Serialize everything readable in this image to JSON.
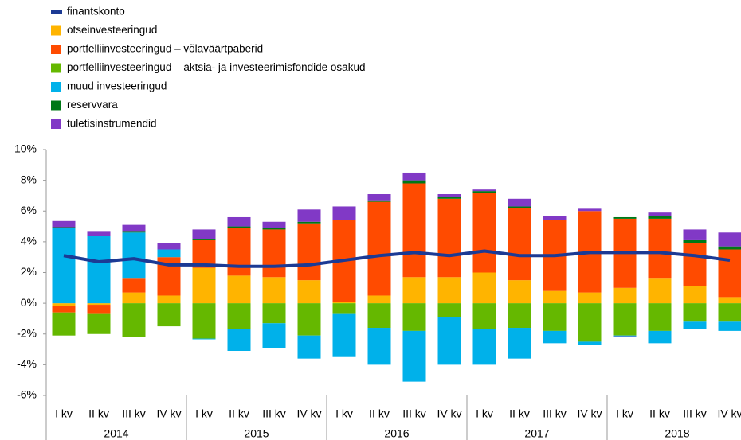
{
  "chart_data": {
    "type": "stacked-bar-line",
    "categories": [
      "I kv",
      "II kv",
      "III kv",
      "IV kv",
      "I kv",
      "II kv",
      "III kv",
      "IV kv",
      "I kv",
      "II kv",
      "III kv",
      "IV kv",
      "I kv",
      "II kv",
      "III kv",
      "IV kv",
      "I kv",
      "II kv",
      "III kv",
      "IV kv"
    ],
    "years": [
      "2014",
      "2015",
      "2016",
      "2017",
      "2018"
    ],
    "ylim": [
      -6,
      10
    ],
    "yticks": [
      {
        "value": -6,
        "label": "-6%"
      },
      {
        "value": -4,
        "label": "-4%"
      },
      {
        "value": -2,
        "label": "-2%"
      },
      {
        "value": 0,
        "label": "0%"
      },
      {
        "value": 2,
        "label": "2%"
      },
      {
        "value": 4,
        "label": "4%"
      },
      {
        "value": 6,
        "label": "6%"
      },
      {
        "value": 8,
        "label": "8%"
      },
      {
        "value": 10,
        "label": "10%"
      }
    ],
    "grid": false,
    "line": {
      "name": "finantskonto",
      "color": "#1c3a94",
      "values": [
        3.1,
        2.7,
        2.9,
        2.5,
        2.5,
        2.4,
        2.4,
        2.5,
        2.8,
        3.1,
        3.3,
        3.1,
        3.4,
        3.1,
        3.1,
        3.3,
        3.3,
        3.3,
        3.1,
        2.8
      ]
    },
    "series": [
      {
        "name": "otseinvesteeringud",
        "color": "#ffb400",
        "values": [
          -0.2,
          -0.1,
          0.7,
          0.5,
          2.3,
          1.8,
          1.7,
          1.5,
          0.1,
          0.5,
          1.7,
          1.7,
          2.0,
          1.5,
          0.8,
          0.7,
          1.0,
          1.6,
          1.1,
          0.4
        ]
      },
      {
        "name": "portfelliinvesteeringud – võlaväärtpaberid",
        "color": "#ff4b00",
        "values": [
          -0.4,
          -0.6,
          0.9,
          2.5,
          1.8,
          3.1,
          3.1,
          3.7,
          5.3,
          6.1,
          6.1,
          5.1,
          5.2,
          4.7,
          4.6,
          5.3,
          4.5,
          3.9,
          2.8,
          3.1
        ]
      },
      {
        "name": "portfelliinvesteeringud – aktsia- ja investeerimisfondide osakud",
        "color": "#65b800",
        "values": [
          -1.5,
          -1.3,
          -2.2,
          -1.5,
          -2.3,
          -1.7,
          -1.3,
          -2.1,
          -0.7,
          -1.6,
          -1.8,
          -0.9,
          -1.7,
          -1.6,
          -1.8,
          -2.5,
          -2.1,
          -1.8,
          -1.2,
          -1.2
        ]
      },
      {
        "name": "muud investeeringud",
        "color": "#00b1ea",
        "values": [
          4.9,
          4.4,
          3.0,
          0.5,
          -0.05,
          -1.4,
          -1.6,
          -1.5,
          -2.8,
          -2.4,
          -3.3,
          -3.1,
          -2.3,
          -2.0,
          -0.8,
          -0.2,
          -0.05,
          -0.8,
          -0.5,
          -0.6
        ]
      },
      {
        "name": "reservvara",
        "color": "#007816",
        "values": [
          0.05,
          0,
          0.1,
          0,
          0.1,
          0.1,
          0.1,
          0.1,
          0,
          0.1,
          0.2,
          0.1,
          0.1,
          0.1,
          0,
          0,
          0.1,
          0.2,
          0.2,
          0.2
        ]
      },
      {
        "name": "tuletisinstrumendid",
        "color": "#8139c6",
        "values": [
          0.4,
          0.3,
          0.4,
          0.4,
          0.6,
          0.6,
          0.4,
          0.8,
          0.9,
          0.4,
          0.5,
          0.2,
          0.1,
          0.5,
          0.3,
          0.15,
          -0.05,
          0.2,
          0.7,
          0.9
        ]
      }
    ]
  }
}
